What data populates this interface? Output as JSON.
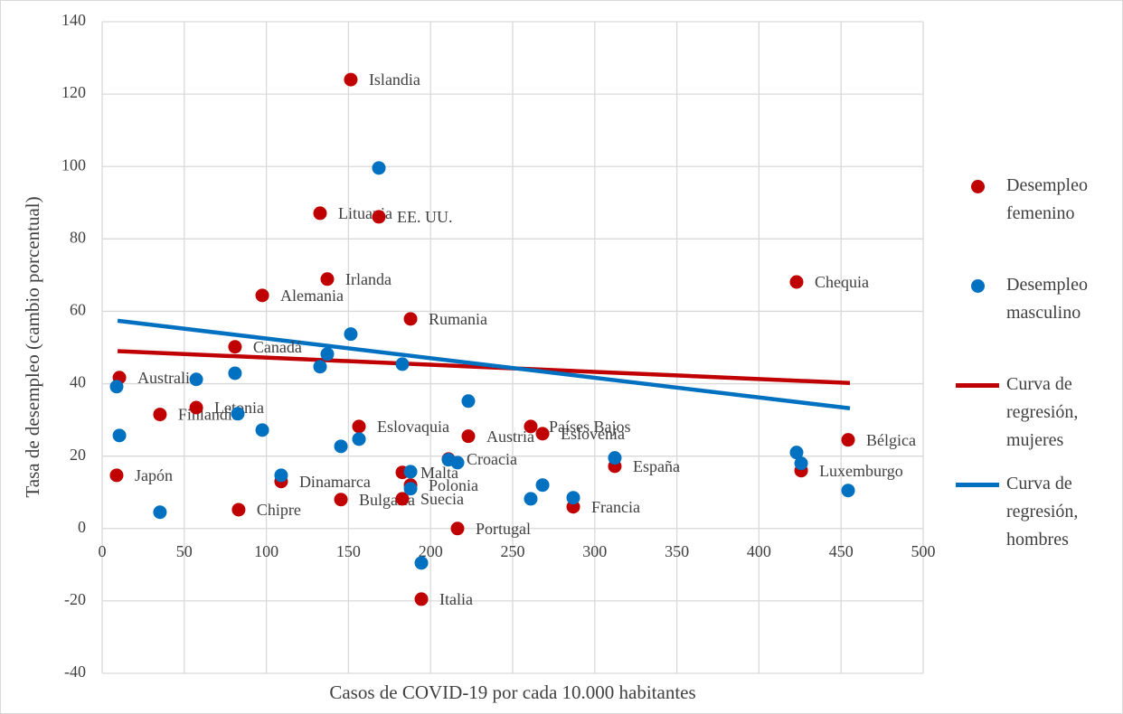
{
  "chart_data": {
    "type": "scatter",
    "xlabel": "Casos de COVID-19 por cada 10.000 habitantes",
    "ylabel": "Tasa de desempleo (cambio porcentual)",
    "xlim": [
      0,
      500
    ],
    "xticks": [
      0,
      50,
      100,
      150,
      200,
      250,
      300,
      350,
      400,
      450,
      500
    ],
    "ylim": [
      -40,
      140
    ],
    "yticks": [
      -40,
      -20,
      0,
      20,
      40,
      60,
      80,
      100,
      120,
      140
    ],
    "grid": true,
    "legend": "right",
    "series": [
      {
        "name": "Desempleo femenino",
        "color": "#c00000",
        "mode": "markers",
        "x": [
          10.5,
          8.8,
          35.2,
          57.3,
          80.9,
          83.1,
          97.5,
          109,
          132.7,
          137.1,
          145.4,
          151.4,
          156.4,
          168.5,
          182.8,
          182.8,
          187.8,
          187.8,
          194.4,
          210.9,
          216.4,
          223,
          261,
          268.2,
          286.9,
          312.2,
          422.9,
          425.7,
          454.3
        ],
        "values": [
          41.7,
          14.7,
          31.5,
          33.4,
          50.2,
          5.2,
          64.4,
          13,
          87.1,
          68.9,
          8,
          124,
          28.2,
          86.1,
          15.5,
          8.2,
          57.9,
          12,
          -19.5,
          19.2,
          0,
          25.5,
          28.2,
          26.2,
          6,
          17.2,
          68.1,
          16,
          24.5
        ],
        "labels": [
          "Australia",
          "Japón",
          "Finlandia",
          "Letonia",
          "Canadá",
          "Chipre",
          "Alemania",
          "Dinamarca",
          "Lituania",
          "Irlanda",
          "Bulgaria",
          "Islandia",
          "Eslovaquia",
          "EE. UU.",
          "Malta",
          "Suecia",
          "Rumania",
          "Polonia",
          "Italia",
          "Croacia",
          "Portugal",
          "Austria",
          "Países Bajos",
          "Eslovenia",
          "Francia",
          "España",
          "Chequia",
          "Luxemburgo",
          "Bélgica"
        ]
      },
      {
        "name": "Desempleo masculino",
        "color": "#0070c0",
        "mode": "markers",
        "x": [
          8.8,
          10.5,
          35.2,
          57.3,
          80.9,
          82.6,
          97.5,
          109,
          132.7,
          137.1,
          145.4,
          151.4,
          156.4,
          168.5,
          182.8,
          187.8,
          187.8,
          194.4,
          210.9,
          216.4,
          223,
          261,
          268.2,
          286.9,
          312.2,
          422.9,
          425.7,
          454.3
        ],
        "values": [
          39.2,
          25.7,
          4.5,
          41.2,
          42.9,
          31.7,
          27.2,
          14.7,
          44.7,
          48.2,
          22.7,
          53.7,
          24.7,
          99.6,
          45.4,
          15.7,
          11,
          -9.5,
          19,
          18.2,
          35.2,
          8.2,
          12,
          8.5,
          19.5,
          21,
          18,
          10.5
        ]
      },
      {
        "name": "Curva de regresión, mujeres",
        "color": "#c00000",
        "mode": "line",
        "x": [
          9.4,
          455.4
        ],
        "values": [
          49,
          40.2
        ]
      },
      {
        "name": "Curva de regresión, hombres",
        "color": "#0070c0",
        "mode": "line",
        "x": [
          9.4,
          455.4
        ],
        "values": [
          57.4,
          33.2
        ]
      }
    ]
  }
}
